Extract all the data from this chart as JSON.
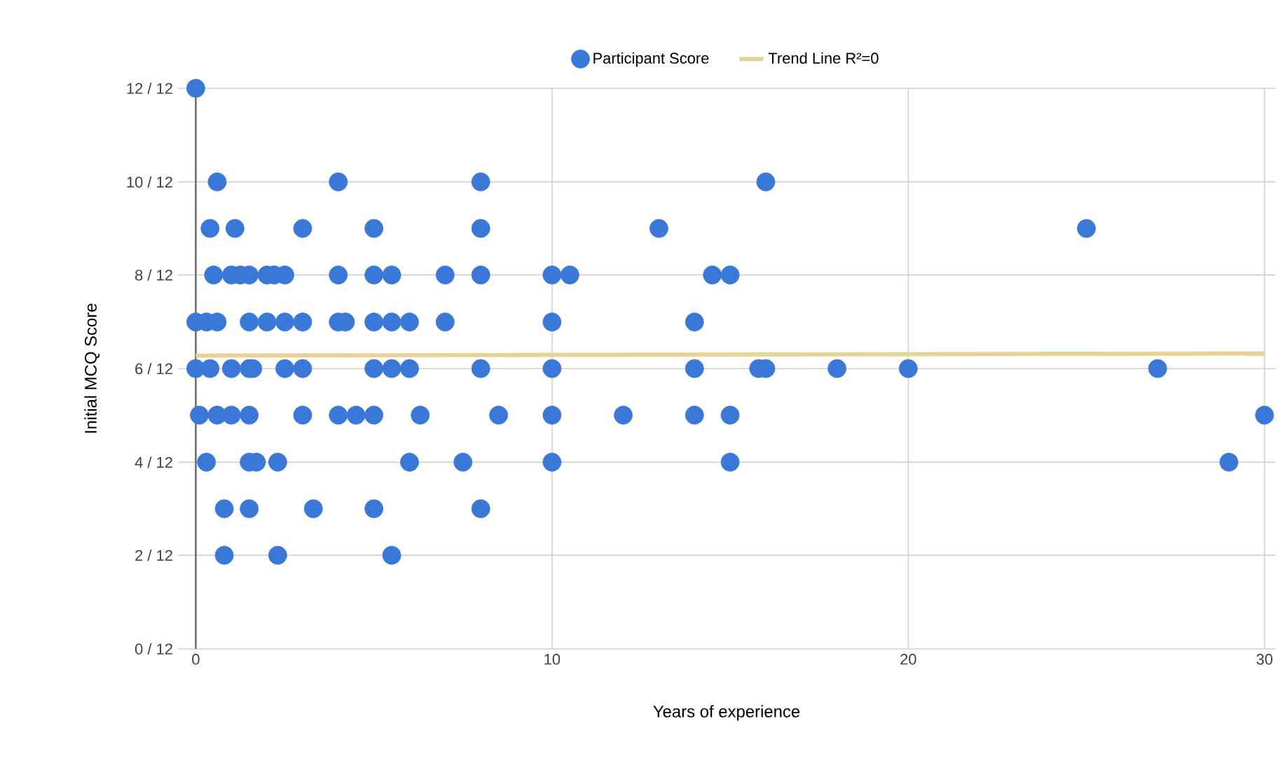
{
  "chart_data": {
    "type": "scatter",
    "xlabel": "Years of experience",
    "ylabel": "Initial MCQ Score",
    "xlim": [
      -0.5,
      30.3
    ],
    "xticks": [
      0,
      10,
      20,
      30
    ],
    "ylim": [
      0,
      1
    ],
    "yticks": [
      {
        "value": 0,
        "label": "0 / 12"
      },
      {
        "value": 0.167,
        "label": "2 / 12"
      },
      {
        "value": 0.333,
        "label": "4 / 12"
      },
      {
        "value": 0.5,
        "label": "6 / 12"
      },
      {
        "value": 0.667,
        "label": "8 / 12"
      },
      {
        "value": 0.833,
        "label": "10 / 12"
      },
      {
        "value": 1,
        "label": "12 / 12"
      }
    ],
    "grid": true,
    "legend": "top",
    "marker": "circle",
    "series": [
      {
        "name": "Participant Score",
        "color": "#3a78d8",
        "x": [
          0,
          0.6,
          4,
          8,
          16,
          0.4,
          1.1,
          3,
          5,
          8,
          13,
          25,
          0.5,
          1,
          1.25,
          1.5,
          2,
          2.2,
          2.5,
          4,
          5,
          5.5,
          7,
          8,
          10,
          10.5,
          14.5,
          15,
          0,
          0.3,
          0.6,
          1.5,
          2,
          2.5,
          3,
          4,
          4.2,
          5,
          5.5,
          6,
          7,
          10,
          14,
          0,
          0.4,
          1,
          1.5,
          1.6,
          2.5,
          3,
          5,
          5.5,
          6,
          8,
          10,
          14,
          15.8,
          16,
          18,
          20,
          27,
          0.1,
          0.6,
          1,
          1.5,
          3,
          4,
          4.5,
          5,
          6.3,
          8.5,
          10,
          12,
          14,
          15,
          30,
          0.3,
          1.5,
          1.7,
          2.3,
          6,
          7.5,
          10,
          15,
          29,
          0.8,
          1.5,
          3.3,
          5,
          8,
          0.8,
          2.3,
          5.5
        ],
        "values": [
          1,
          0.833,
          0.833,
          0.833,
          0.833,
          0.75,
          0.75,
          0.75,
          0.75,
          0.75,
          0.75,
          0.75,
          0.667,
          0.667,
          0.667,
          0.667,
          0.667,
          0.667,
          0.667,
          0.667,
          0.667,
          0.667,
          0.667,
          0.667,
          0.667,
          0.667,
          0.667,
          0.667,
          0.583,
          0.583,
          0.583,
          0.583,
          0.583,
          0.583,
          0.583,
          0.583,
          0.583,
          0.583,
          0.583,
          0.583,
          0.583,
          0.583,
          0.583,
          0.5,
          0.5,
          0.5,
          0.5,
          0.5,
          0.5,
          0.5,
          0.5,
          0.5,
          0.5,
          0.5,
          0.5,
          0.5,
          0.5,
          0.5,
          0.5,
          0.5,
          0.5,
          0.417,
          0.417,
          0.417,
          0.417,
          0.417,
          0.417,
          0.417,
          0.417,
          0.417,
          0.417,
          0.417,
          0.417,
          0.417,
          0.417,
          0.417,
          0.333,
          0.333,
          0.333,
          0.333,
          0.333,
          0.333,
          0.333,
          0.333,
          0.333,
          0.25,
          0.25,
          0.25,
          0.25,
          0.25,
          0.167,
          0.167,
          0.167
        ]
      },
      {
        "name": "Trend Line R²=0",
        "type": "line",
        "color": "#e8d395",
        "marker": "none",
        "x": [
          0,
          30
        ],
        "values": [
          0.523,
          0.527
        ]
      }
    ]
  }
}
